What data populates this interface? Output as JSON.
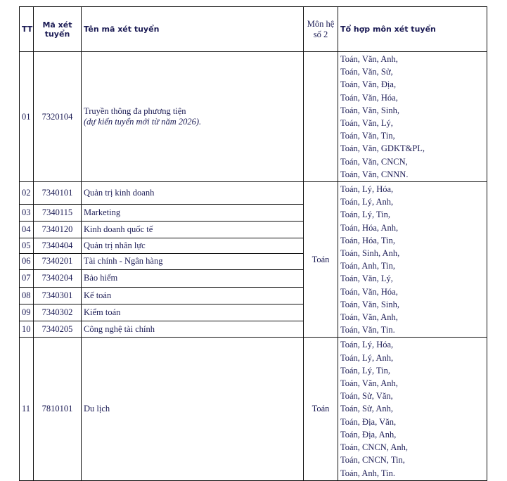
{
  "headers": {
    "tt": "TT",
    "code": "Mã xét tuyển",
    "name": "Tên mã xét tuyển",
    "subject_x2": "Môn hệ số 2",
    "combos": "Tổ hợp môn xét tuyển"
  },
  "groups": [
    {
      "subject_x2": "",
      "combos": [
        "Toán, Văn, Anh,",
        "Toán, Văn, Sử,",
        "Toán, Văn, Địa,",
        "Toán, Văn, Hóa,",
        "Toán, Văn, Sinh,",
        "Toán, Văn, Lý,",
        "Toán, Văn, Tin,",
        "Toán, Văn, GDKT&PL,",
        "Toán, Văn, CNCN,",
        "Toán, Văn, CNNN."
      ],
      "rows": [
        {
          "tt": "01",
          "code": "7320104",
          "name": "Truyền thông đa phương tiện",
          "note": "(dự kiến tuyển mới từ năm 2026)."
        }
      ]
    },
    {
      "subject_x2": "Toán",
      "combos": [
        "Toán, Lý, Hóa,",
        "Toán, Lý, Anh,",
        "Toán, Lý, Tin,",
        "Toán, Hóa, Anh,",
        "Toán, Hóa, Tin,",
        "Toán, Sinh, Anh,",
        "Toán, Anh, Tin,",
        "Toán, Văn, Lý,",
        "Toán, Văn, Hóa,",
        "Toán, Văn, Sinh,",
        "Toán, Văn, Anh,",
        "Toán, Văn, Tin."
      ],
      "rows": [
        {
          "tt": "02",
          "code": "7340101",
          "name": "Quản trị kinh doanh"
        },
        {
          "tt": "03",
          "code": "7340115",
          "name": "Marketing"
        },
        {
          "tt": "04",
          "code": "7340120",
          "name": "Kinh doanh quốc tế"
        },
        {
          "tt": "05",
          "code": "7340404",
          "name": "Quản trị nhân lực"
        },
        {
          "tt": "06",
          "code": "7340201",
          "name": "Tài chính - Ngân hàng"
        },
        {
          "tt": "07",
          "code": "7340204",
          "name": "Bảo hiểm"
        },
        {
          "tt": "08",
          "code": "7340301",
          "name": "Kế toán"
        },
        {
          "tt": "09",
          "code": "7340302",
          "name": "Kiểm toán"
        },
        {
          "tt": "10",
          "code": "7340205",
          "name": "Công nghệ tài chính"
        }
      ]
    },
    {
      "subject_x2": "Toán",
      "combos": [
        "Toán, Lý, Hóa,",
        "Toán, Lý, Anh,",
        "Toán, Lý, Tin,",
        "Toán, Văn, Anh,",
        "Toán, Sử, Văn,",
        "Toán, Sử, Anh,",
        "Toán, Địa, Văn,",
        "Toán, Địa, Anh,",
        "Toán, CNCN, Anh,",
        "Toán, CNCN, Tin,",
        "Toán, Anh, Tin."
      ],
      "rows": [
        {
          "tt": "11",
          "code": "7810101",
          "name": "Du lịch"
        }
      ]
    }
  ]
}
